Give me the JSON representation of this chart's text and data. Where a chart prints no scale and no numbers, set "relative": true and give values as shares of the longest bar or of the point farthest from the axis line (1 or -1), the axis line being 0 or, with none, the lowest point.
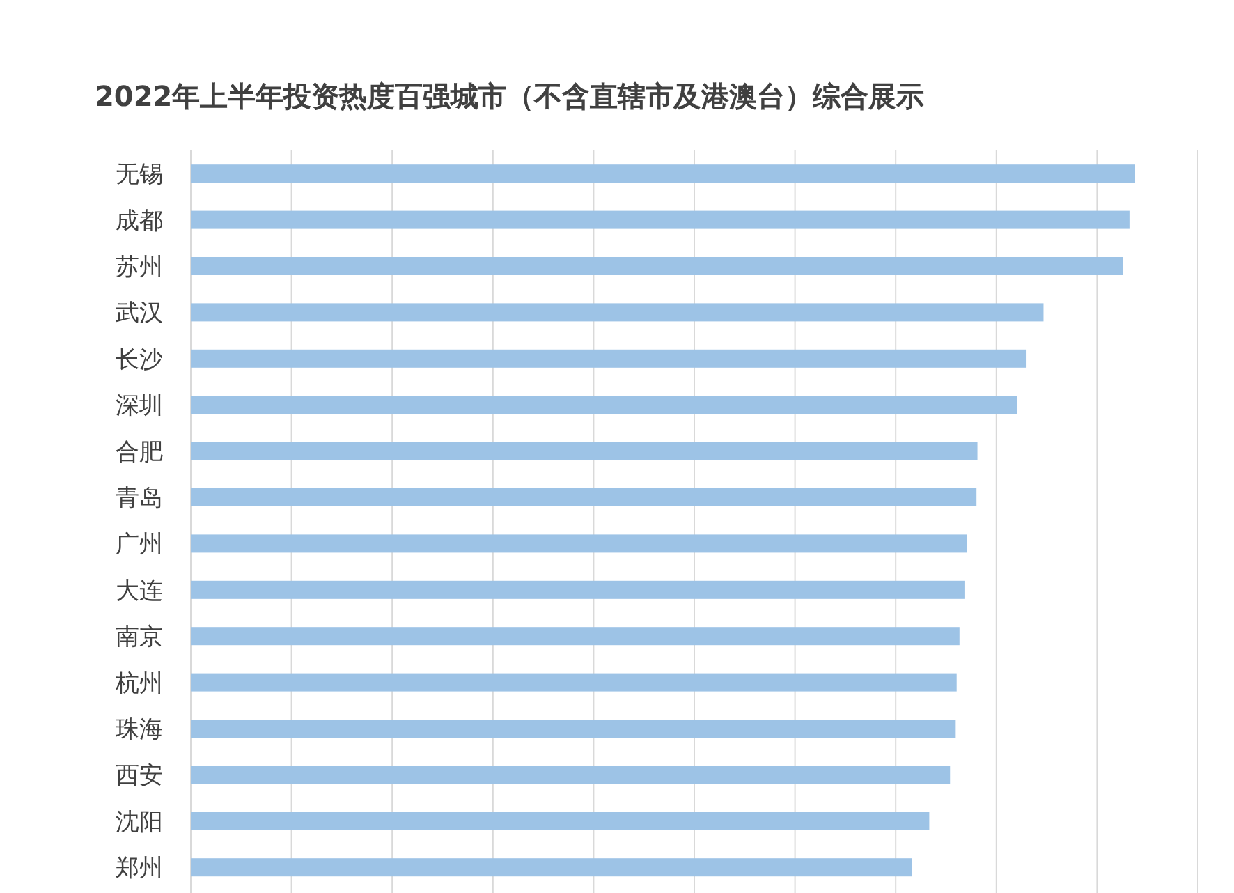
{
  "chart_data": {
    "type": "bar",
    "orientation": "horizontal",
    "relative": true,
    "title": "2022年上半年投资热度百强城市（不含直辖市及港澳台）综合展示",
    "categories": [
      "无锡",
      "成都",
      "苏州",
      "武汉",
      "长沙",
      "深圳",
      "合肥",
      "青岛",
      "广州",
      "大连",
      "南京",
      "杭州",
      "珠海",
      "西安",
      "沈阳",
      "郑州"
    ],
    "values": [
      1,
      0.994,
      0.987,
      0.903,
      0.885,
      0.875,
      0.833,
      0.832,
      0.822,
      0.82,
      0.814,
      0.811,
      0.81,
      0.804,
      0.782,
      0.764
    ],
    "color": "#9dc3e6",
    "grid": "x"
  }
}
